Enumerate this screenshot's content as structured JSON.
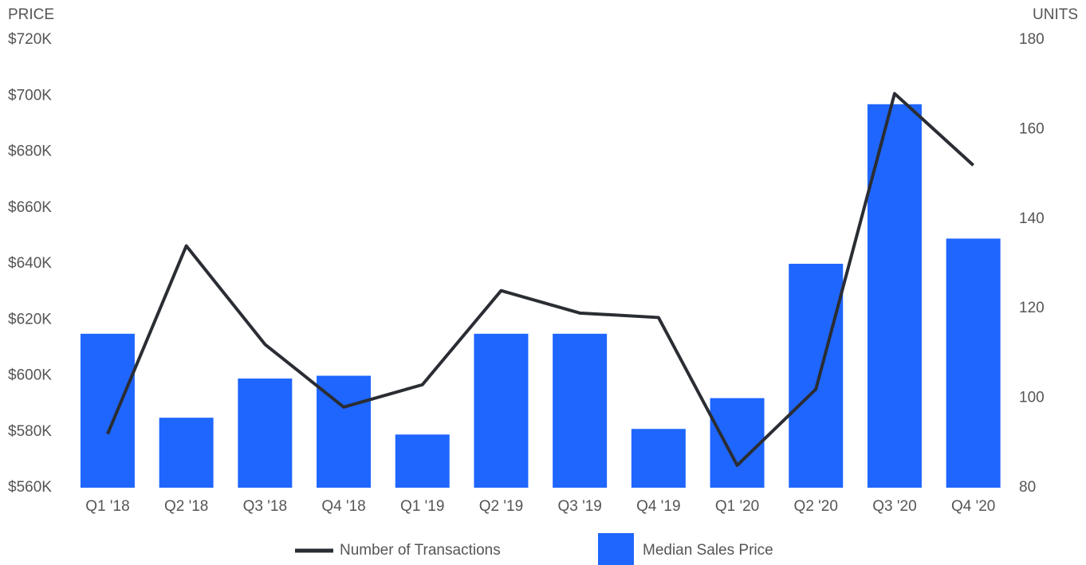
{
  "chart_data": {
    "type": "bar",
    "ylabel": "PRICE",
    "y2label": "UNITS",
    "categories": [
      "Q1 '18",
      "Q2 '18",
      "Q3 '18",
      "Q4 '18",
      "Q1 '19",
      "Q2 '19",
      "Q3 '19",
      "Q4 '19",
      "Q1 '20",
      "Q2 '20",
      "Q3 '20",
      "Q4 '20"
    ],
    "series": [
      {
        "name": "Number of Transactions",
        "type": "line",
        "axis": "y2",
        "color": "#2a2d33",
        "values": [
          92,
          134,
          112,
          98,
          103,
          124,
          119,
          118,
          85,
          102,
          168,
          152
        ]
      },
      {
        "name": "Median Sales Price",
        "type": "bar",
        "color": "#1f66ff",
        "values": [
          615000,
          585000,
          599000,
          600000,
          579000,
          615000,
          615000,
          581000,
          592000,
          640000,
          697000,
          649000
        ]
      }
    ],
    "ylim": [
      560000,
      720000
    ],
    "yticks": [
      {
        "value": 560000,
        "label": "$560K"
      },
      {
        "value": 580000,
        "label": "$580K"
      },
      {
        "value": 600000,
        "label": "$600K"
      },
      {
        "value": 620000,
        "label": "$620K"
      },
      {
        "value": 640000,
        "label": "$640K"
      },
      {
        "value": 660000,
        "label": "$660K"
      },
      {
        "value": 680000,
        "label": "$680K"
      },
      {
        "value": 700000,
        "label": "$700K"
      },
      {
        "value": 720000,
        "label": "$720K"
      }
    ],
    "y2lim": [
      80,
      180
    ],
    "y2ticks": [
      80,
      100,
      120,
      140,
      160,
      180
    ],
    "legend": "bottom"
  }
}
